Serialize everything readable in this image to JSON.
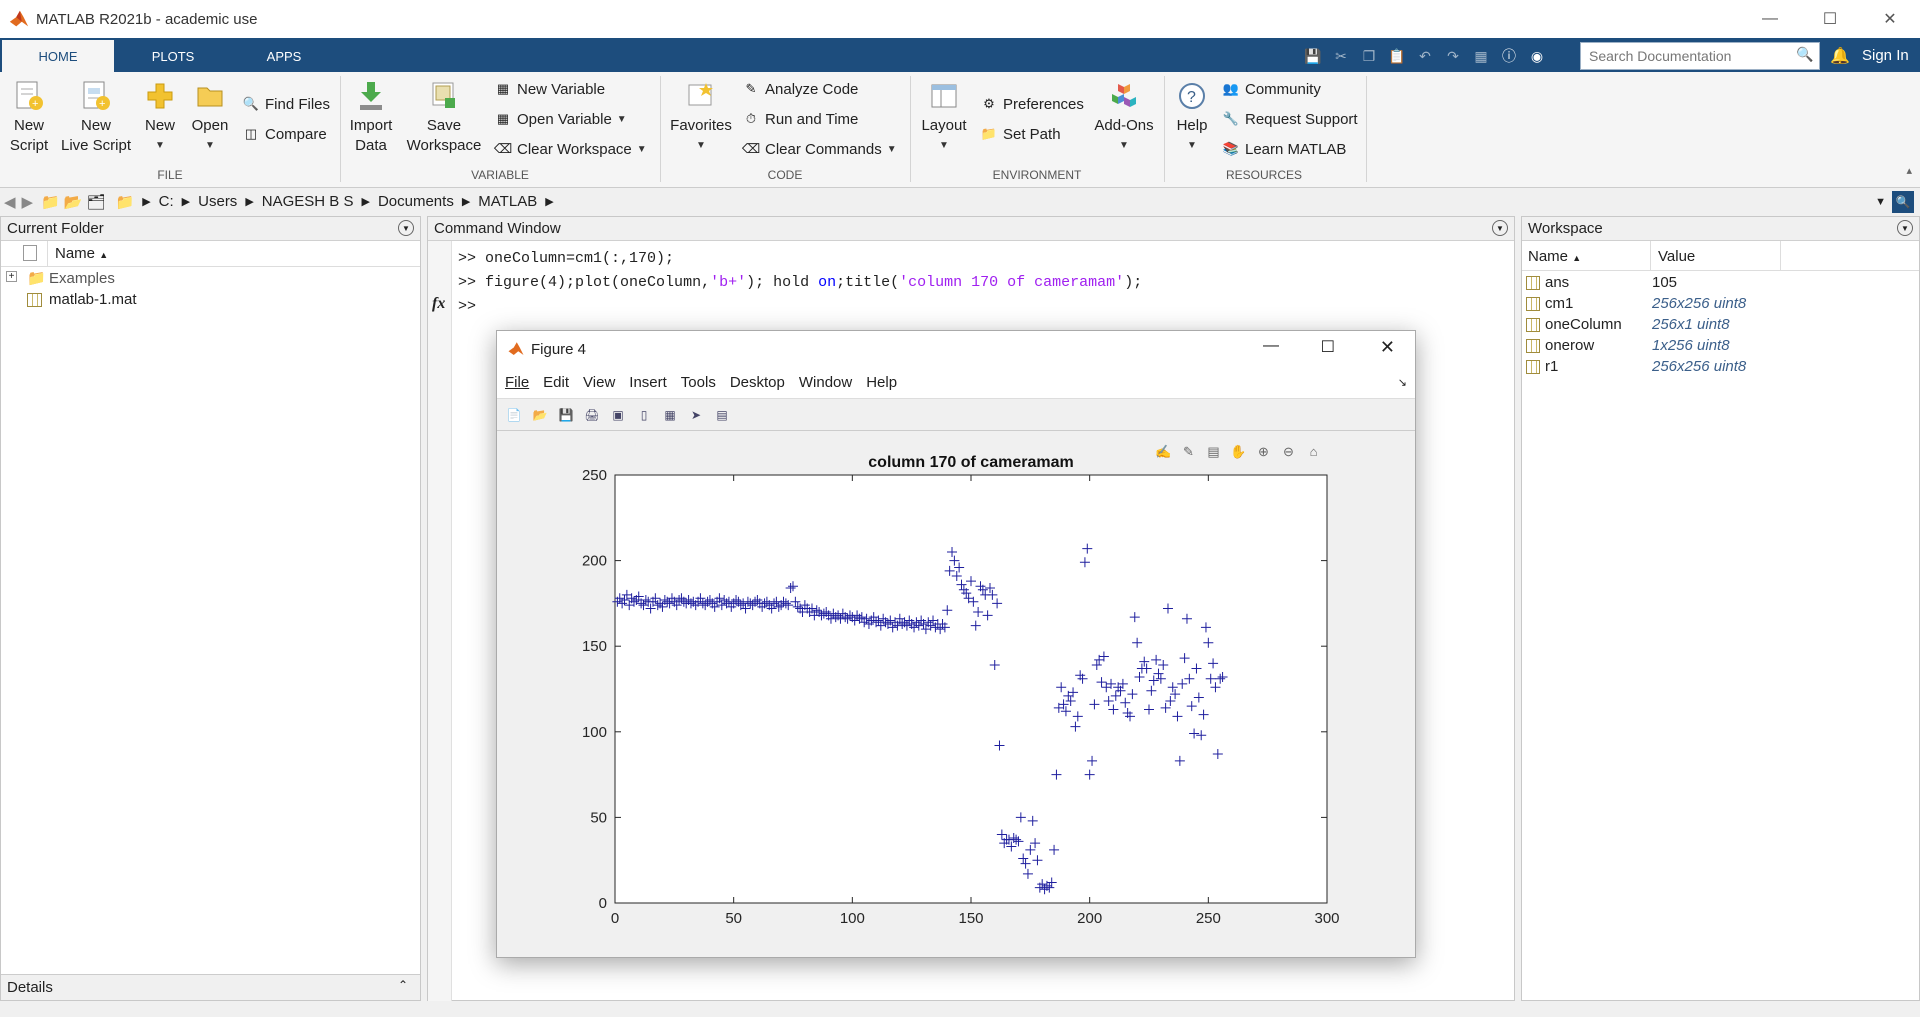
{
  "app": {
    "title": "MATLAB R2021b - academic use"
  },
  "tabs": [
    {
      "label": "HOME"
    },
    {
      "label": "PLOTS"
    },
    {
      "label": "APPS"
    }
  ],
  "search": {
    "placeholder": "Search Documentation"
  },
  "signin": "Sign In",
  "ribbon": {
    "file": {
      "new_script": "New\nScript",
      "new_script_l1": "New",
      "new_script_l2": "Script",
      "new_live_l1": "New",
      "new_live_l2": "Live Script",
      "new": "New",
      "open": "Open",
      "find_files": "Find Files",
      "compare": "Compare",
      "label": "FILE"
    },
    "variable": {
      "import_l1": "Import",
      "import_l2": "Data",
      "save_l1": "Save",
      "save_l2": "Workspace",
      "new_variable": "New Variable",
      "open_variable": "Open Variable",
      "clear_workspace": "Clear Workspace",
      "label": "VARIABLE"
    },
    "code": {
      "favorites": "Favorites",
      "analyze": "Analyze Code",
      "run_time": "Run and Time",
      "clear_commands": "Clear Commands",
      "label": "CODE"
    },
    "environment": {
      "layout": "Layout",
      "preferences": "Preferences",
      "set_path": "Set Path",
      "addons": "Add-Ons",
      "label": "ENVIRONMENT"
    },
    "resources": {
      "help": "Help",
      "community": "Community",
      "request_support": "Request Support",
      "learn": "Learn MATLAB",
      "label": "RESOURCES"
    }
  },
  "path": {
    "segments": [
      "C:",
      "Users",
      "NAGESH B S",
      "Documents",
      "MATLAB"
    ]
  },
  "current_folder": {
    "title": "Current Folder",
    "col_name": "Name",
    "items": [
      {
        "name": "Examples"
      },
      {
        "name": "matlab-1.mat"
      }
    ],
    "details": "Details"
  },
  "command_window": {
    "title": "Command Window",
    "prompt": ">>",
    "line1": "oneColumn=cm1(:,170);",
    "line2_a": "figure(4);plot(oneColumn,",
    "line2_str1": "'b+'",
    "line2_b": "); hold ",
    "line2_kw": "on",
    "line2_c": ";title(",
    "line2_str2": "'column 170 of cameramam'",
    "line2_d": ");",
    "fx": "fx"
  },
  "figure": {
    "title": "Figure 4",
    "menu": [
      "File",
      "Edit",
      "View",
      "Insert",
      "Tools",
      "Desktop",
      "Window",
      "Help"
    ]
  },
  "workspace": {
    "title": "Workspace",
    "col_name": "Name",
    "col_value": "Value",
    "vars": [
      {
        "name": "ans",
        "value": "105"
      },
      {
        "name": "cm1",
        "value": "256x256 uint8"
      },
      {
        "name": "oneColumn",
        "value": "256x1 uint8"
      },
      {
        "name": "onerow",
        "value": "1x256 uint8"
      },
      {
        "name": "r1",
        "value": "256x256 uint8"
      }
    ]
  },
  "colors": {
    "accent": "#1d4d7d",
    "plot_marker": "#1f1f9e",
    "string": "#a020f0",
    "keyword": "#a020f0"
  },
  "chart_data": {
    "type": "scatter",
    "title": "column 170 of cameramam",
    "marker": "+",
    "xlim": [
      0,
      300
    ],
    "ylim": [
      0,
      250
    ],
    "xticks": [
      0,
      50,
      100,
      150,
      200,
      250,
      300
    ],
    "yticks": [
      0,
      50,
      100,
      150,
      200,
      250
    ],
    "points": [
      [
        1,
        176
      ],
      [
        2,
        178
      ],
      [
        3,
        175
      ],
      [
        4,
        177
      ],
      [
        5,
        180
      ],
      [
        6,
        174
      ],
      [
        7,
        178
      ],
      [
        8,
        176
      ],
      [
        9,
        177
      ],
      [
        10,
        179
      ],
      [
        11,
        175
      ],
      [
        12,
        174
      ],
      [
        13,
        177
      ],
      [
        14,
        176
      ],
      [
        15,
        172
      ],
      [
        16,
        176
      ],
      [
        17,
        178
      ],
      [
        18,
        174
      ],
      [
        19,
        175
      ],
      [
        20,
        173
      ],
      [
        21,
        177
      ],
      [
        22,
        176
      ],
      [
        23,
        175
      ],
      [
        24,
        178
      ],
      [
        25,
        176
      ],
      [
        26,
        174
      ],
      [
        27,
        177
      ],
      [
        28,
        178
      ],
      [
        29,
        176
      ],
      [
        30,
        175
      ],
      [
        31,
        177
      ],
      [
        32,
        175
      ],
      [
        33,
        176
      ],
      [
        34,
        174
      ],
      [
        35,
        176
      ],
      [
        36,
        178
      ],
      [
        37,
        175
      ],
      [
        38,
        174
      ],
      [
        39,
        176
      ],
      [
        40,
        177
      ],
      [
        41,
        175
      ],
      [
        42,
        173
      ],
      [
        43,
        176
      ],
      [
        44,
        178
      ],
      [
        45,
        174
      ],
      [
        46,
        177
      ],
      [
        47,
        175
      ],
      [
        48,
        176
      ],
      [
        49,
        173
      ],
      [
        50,
        175
      ],
      [
        51,
        177
      ],
      [
        52,
        176
      ],
      [
        53,
        174
      ],
      [
        54,
        175
      ],
      [
        55,
        172
      ],
      [
        56,
        176
      ],
      [
        57,
        175
      ],
      [
        58,
        174
      ],
      [
        59,
        176
      ],
      [
        60,
        177
      ],
      [
        61,
        175
      ],
      [
        62,
        173
      ],
      [
        63,
        175
      ],
      [
        64,
        176
      ],
      [
        65,
        174
      ],
      [
        66,
        172
      ],
      [
        67,
        175
      ],
      [
        68,
        176
      ],
      [
        69,
        173
      ],
      [
        70,
        174
      ],
      [
        71,
        176
      ],
      [
        72,
        175
      ],
      [
        73,
        174
      ],
      [
        74,
        184
      ],
      [
        75,
        185
      ],
      [
        76,
        176
      ],
      [
        77,
        173
      ],
      [
        78,
        172
      ],
      [
        79,
        170
      ],
      [
        80,
        174
      ],
      [
        81,
        172
      ],
      [
        82,
        170
      ],
      [
        83,
        172
      ],
      [
        84,
        168
      ],
      [
        85,
        171
      ],
      [
        86,
        170
      ],
      [
        87,
        168
      ],
      [
        88,
        169
      ],
      [
        89,
        170
      ],
      [
        90,
        168
      ],
      [
        91,
        166
      ],
      [
        92,
        169
      ],
      [
        93,
        167
      ],
      [
        94,
        168
      ],
      [
        95,
        166
      ],
      [
        96,
        169
      ],
      [
        97,
        167
      ],
      [
        98,
        166
      ],
      [
        99,
        168
      ],
      [
        100,
        167
      ],
      [
        101,
        165
      ],
      [
        102,
        168
      ],
      [
        103,
        166
      ],
      [
        104,
        167
      ],
      [
        105,
        164
      ],
      [
        106,
        166
      ],
      [
        107,
        163
      ],
      [
        108,
        165
      ],
      [
        109,
        167
      ],
      [
        110,
        164
      ],
      [
        111,
        165
      ],
      [
        112,
        162
      ],
      [
        113,
        166
      ],
      [
        114,
        164
      ],
      [
        115,
        163
      ],
      [
        116,
        165
      ],
      [
        117,
        161
      ],
      [
        118,
        164
      ],
      [
        119,
        162
      ],
      [
        120,
        166
      ],
      [
        121,
        163
      ],
      [
        122,
        164
      ],
      [
        123,
        162
      ],
      [
        124,
        165
      ],
      [
        125,
        163
      ],
      [
        126,
        161
      ],
      [
        127,
        164
      ],
      [
        128,
        162
      ],
      [
        129,
        165
      ],
      [
        130,
        163
      ],
      [
        131,
        160
      ],
      [
        132,
        164
      ],
      [
        133,
        162
      ],
      [
        134,
        165
      ],
      [
        135,
        161
      ],
      [
        136,
        163
      ],
      [
        137,
        160
      ],
      [
        138,
        163
      ],
      [
        139,
        161
      ],
      [
        140,
        171
      ],
      [
        141,
        194
      ],
      [
        142,
        205
      ],
      [
        143,
        200
      ],
      [
        144,
        191
      ],
      [
        145,
        196
      ],
      [
        146,
        186
      ],
      [
        147,
        183
      ],
      [
        148,
        181
      ],
      [
        149,
        178
      ],
      [
        150,
        188
      ],
      [
        151,
        176
      ],
      [
        152,
        162
      ],
      [
        153,
        170
      ],
      [
        154,
        185
      ],
      [
        155,
        183
      ],
      [
        156,
        180
      ],
      [
        157,
        168
      ],
      [
        158,
        184
      ],
      [
        159,
        180
      ],
      [
        160,
        139
      ],
      [
        161,
        175
      ],
      [
        162,
        92
      ],
      [
        163,
        40
      ],
      [
        164,
        35
      ],
      [
        165,
        37
      ],
      [
        166,
        37
      ],
      [
        167,
        33
      ],
      [
        168,
        38
      ],
      [
        169,
        37
      ],
      [
        170,
        36
      ],
      [
        171,
        50
      ],
      [
        172,
        26
      ],
      [
        173,
        23
      ],
      [
        174,
        17
      ],
      [
        175,
        31
      ],
      [
        176,
        48
      ],
      [
        177,
        35
      ],
      [
        178,
        25
      ],
      [
        179,
        9
      ],
      [
        180,
        11
      ],
      [
        181,
        8
      ],
      [
        182,
        10
      ],
      [
        183,
        9
      ],
      [
        184,
        12
      ],
      [
        185,
        31
      ],
      [
        186,
        75
      ],
      [
        187,
        114
      ],
      [
        188,
        126
      ],
      [
        189,
        116
      ],
      [
        190,
        112
      ],
      [
        191,
        121
      ],
      [
        192,
        118
      ],
      [
        193,
        123
      ],
      [
        194,
        103
      ],
      [
        195,
        109
      ],
      [
        196,
        133
      ],
      [
        197,
        131
      ],
      [
        198,
        199
      ],
      [
        199,
        207
      ],
      [
        200,
        75
      ],
      [
        201,
        83
      ],
      [
        202,
        116
      ],
      [
        203,
        139
      ],
      [
        204,
        142
      ],
      [
        205,
        129
      ],
      [
        206,
        144
      ],
      [
        207,
        126
      ],
      [
        208,
        118
      ],
      [
        209,
        128
      ],
      [
        210,
        113
      ],
      [
        211,
        121
      ],
      [
        212,
        126
      ],
      [
        213,
        124
      ],
      [
        214,
        128
      ],
      [
        215,
        117
      ],
      [
        216,
        111
      ],
      [
        217,
        109
      ],
      [
        218,
        122
      ],
      [
        219,
        167
      ],
      [
        220,
        152
      ],
      [
        221,
        132
      ],
      [
        222,
        137
      ],
      [
        223,
        141
      ],
      [
        224,
        137
      ],
      [
        225,
        113
      ],
      [
        226,
        124
      ],
      [
        227,
        130
      ],
      [
        228,
        142
      ],
      [
        229,
        134
      ],
      [
        230,
        131
      ],
      [
        231,
        139
      ],
      [
        232,
        114
      ],
      [
        233,
        172
      ],
      [
        234,
        118
      ],
      [
        235,
        126
      ],
      [
        236,
        122
      ],
      [
        237,
        109
      ],
      [
        238,
        83
      ],
      [
        239,
        128
      ],
      [
        240,
        143
      ],
      [
        241,
        166
      ],
      [
        242,
        131
      ],
      [
        243,
        115
      ],
      [
        244,
        99
      ],
      [
        245,
        137
      ],
      [
        246,
        120
      ],
      [
        247,
        98
      ],
      [
        248,
        110
      ],
      [
        249,
        161
      ],
      [
        250,
        152
      ],
      [
        251,
        131
      ],
      [
        252,
        140
      ],
      [
        253,
        126
      ],
      [
        254,
        87
      ],
      [
        255,
        131
      ],
      [
        256,
        132
      ]
    ]
  }
}
